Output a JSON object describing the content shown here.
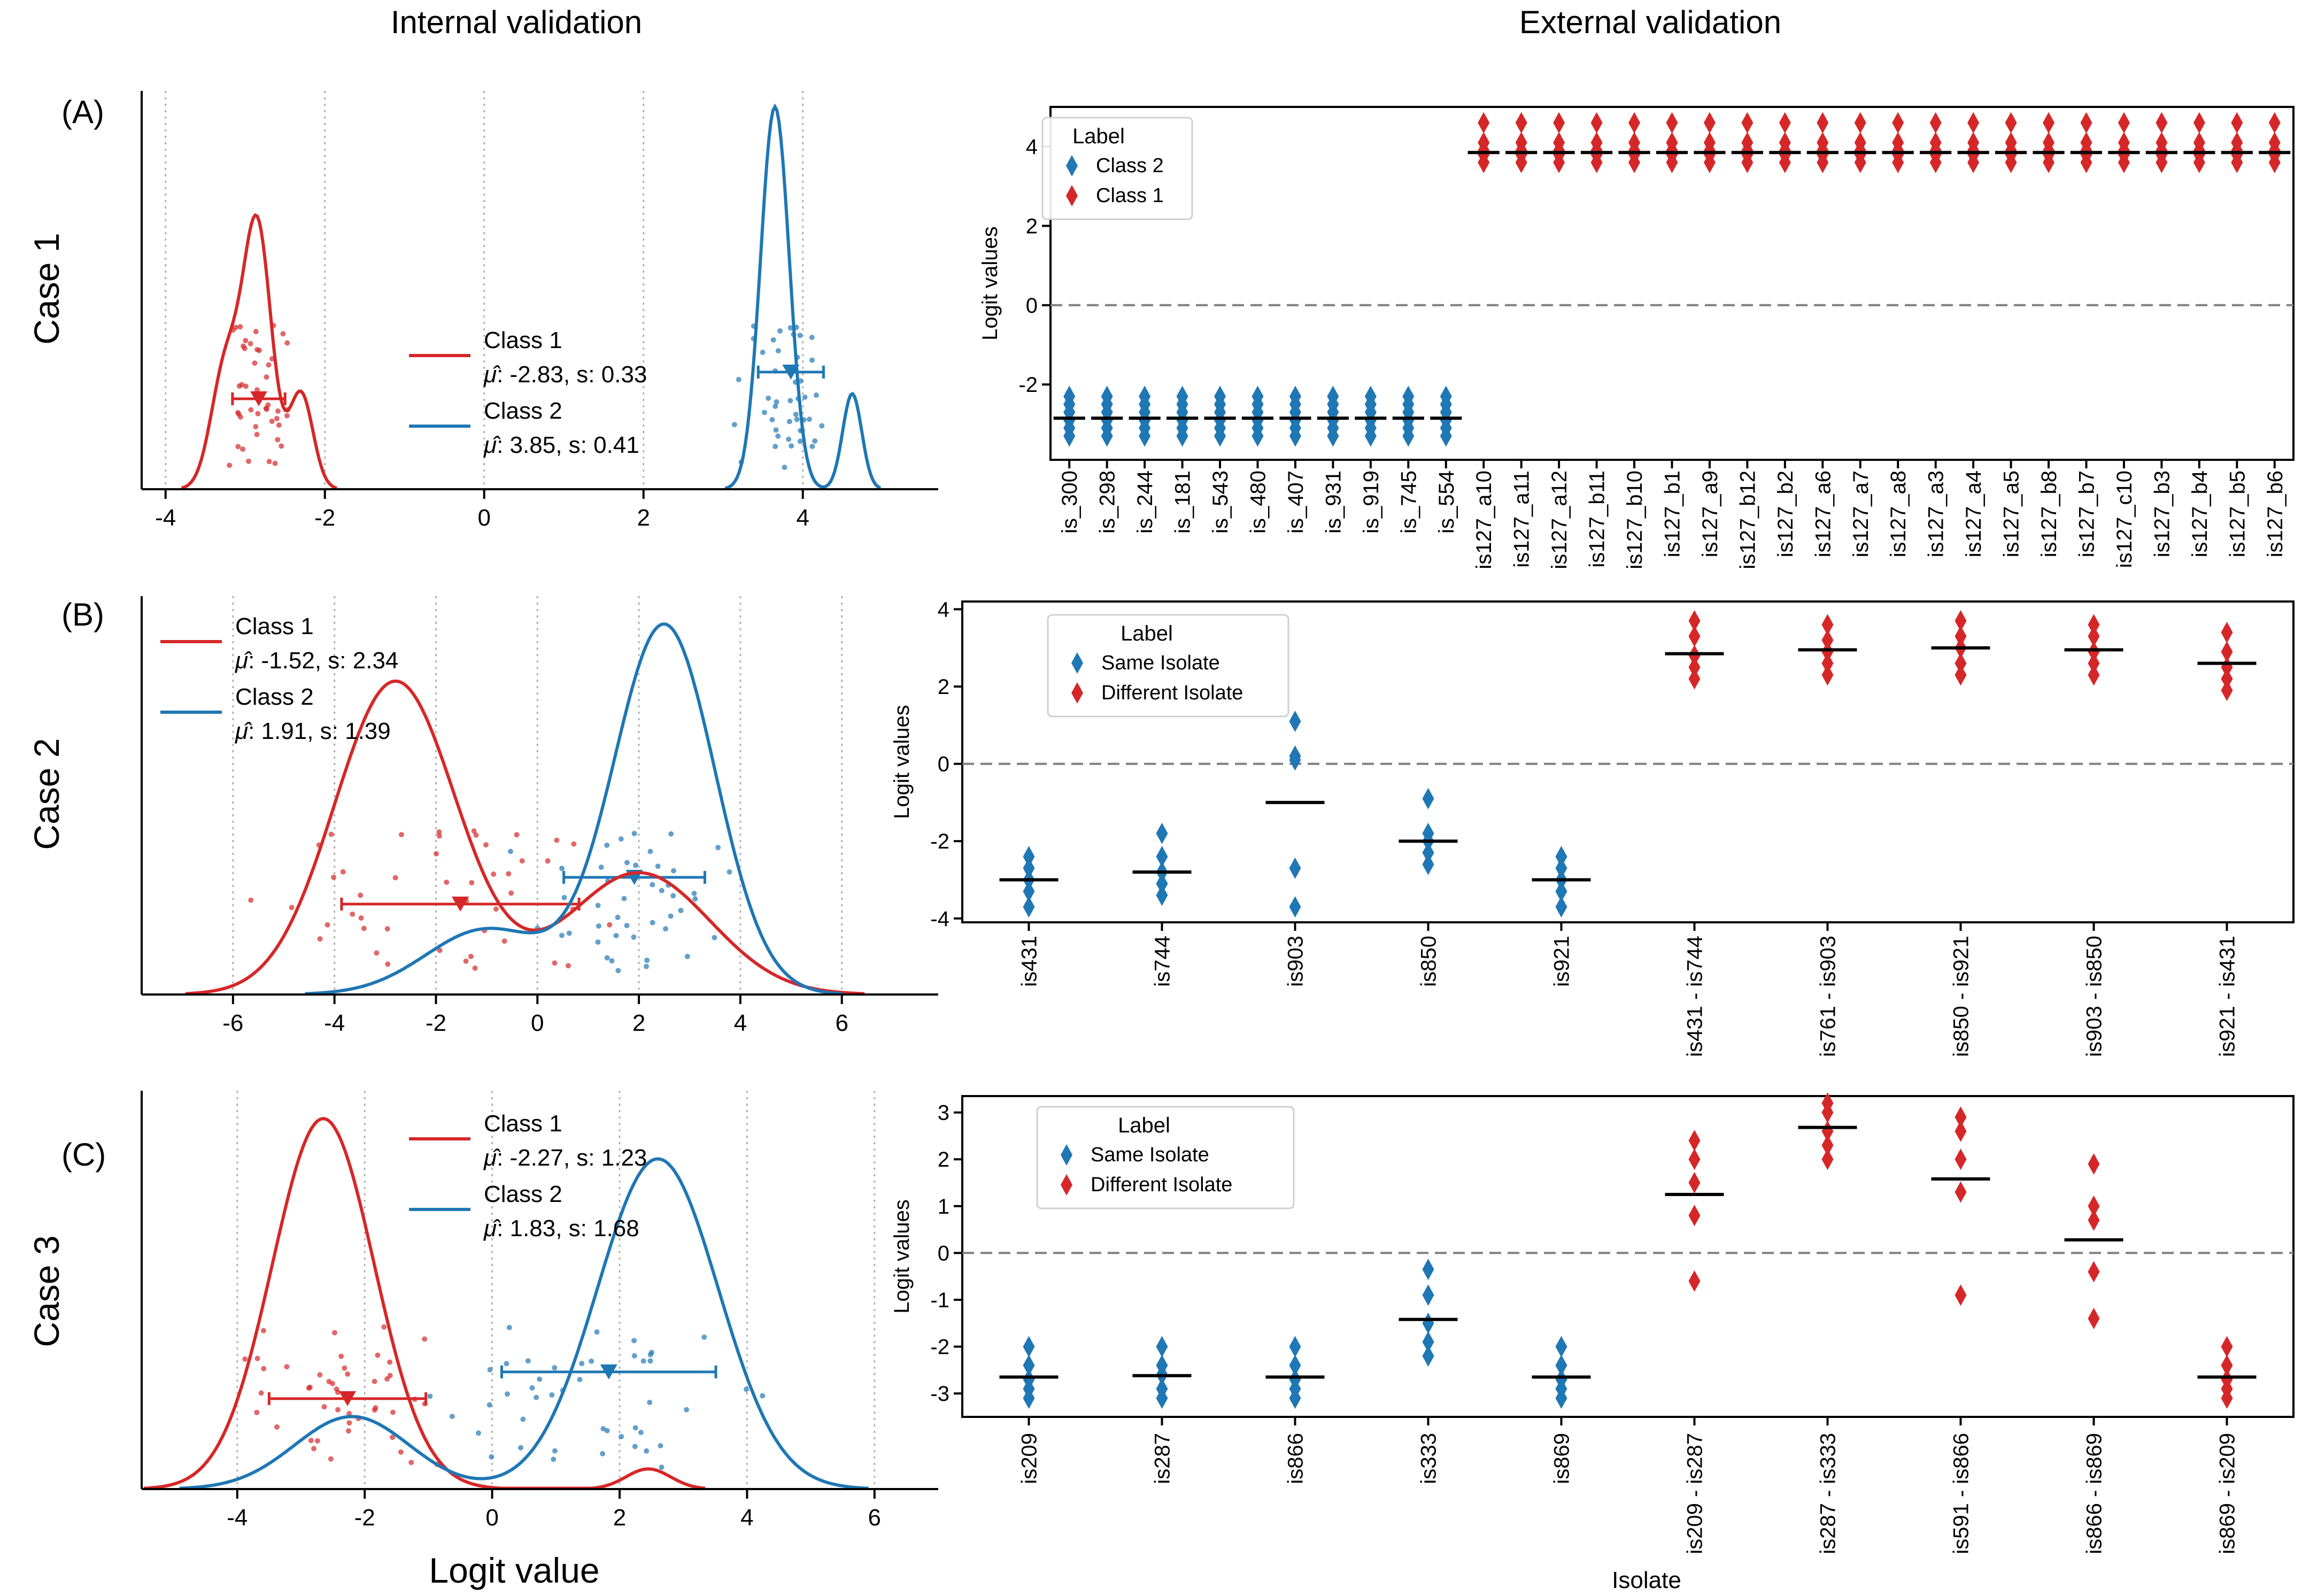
{
  "figure": {
    "internal_title": "Internal validation",
    "external_title": "External validation",
    "kde_xlabel": "Logit value",
    "colors": {
      "class1": "#d62728",
      "class2": "#1f77b4",
      "dashed": "#7f7f7f",
      "mean_bar": "#000000"
    }
  },
  "chart_data": [
    {
      "id": "A",
      "type": "line",
      "panel_label": "(A)",
      "case_label": "Case 1",
      "title": "Internal validation",
      "xlabel": "",
      "xlim": [
        -4.3,
        5.7
      ],
      "xticks": [
        -4,
        -2,
        0,
        2,
        4
      ],
      "grid": "vertical dotted",
      "legend_position": "center",
      "legend": [
        {
          "name": "Class 1",
          "stats": "-2.83, s: 0.33"
        },
        {
          "name": "Class 2",
          "stats": "3.85, s: 0.41"
        }
      ],
      "series": [
        {
          "name": "Class 1",
          "color": "#d62728",
          "mean": -2.83,
          "sd": 0.33,
          "components": [
            [
              -2.85,
              0.18,
              0.55
            ],
            [
              -3.25,
              0.18,
              0.25
            ],
            [
              -2.3,
              0.15,
              0.2
            ]
          ]
        },
        {
          "name": "Class 2",
          "color": "#1f77b4",
          "mean": 3.85,
          "sd": 0.41,
          "components": [
            [
              3.65,
              0.18,
              0.8
            ],
            [
              4.62,
              0.12,
              0.2
            ]
          ]
        }
      ]
    },
    {
      "id": "B",
      "type": "line",
      "panel_label": "(B)",
      "case_label": "Case 2",
      "xlabel": "",
      "xlim": [
        -7.8,
        7.9
      ],
      "xticks": [
        -6,
        -4,
        -2,
        0,
        2,
        4,
        6
      ],
      "grid": "vertical dotted",
      "legend_position": "upper-left",
      "legend": [
        {
          "name": "Class 1",
          "stats": "-1.52, s: 2.34"
        },
        {
          "name": "Class 2",
          "stats": "1.91, s: 1.39"
        }
      ],
      "series": [
        {
          "name": "Class 1",
          "color": "#d62728",
          "mean": -1.52,
          "sd": 2.34,
          "components": [
            [
              -2.8,
              1.2,
              0.72
            ],
            [
              2.0,
              1.4,
              0.28
            ]
          ]
        },
        {
          "name": "Class 2",
          "color": "#1f77b4",
          "mean": 1.91,
          "sd": 1.39,
          "components": [
            [
              2.5,
              1.0,
              0.85
            ],
            [
              -1.0,
              1.2,
              0.15
            ]
          ]
        }
      ]
    },
    {
      "id": "C",
      "type": "line",
      "panel_label": "(C)",
      "case_label": "Case 3",
      "xlabel": "Logit value",
      "xlim": [
        -5.5,
        7.0
      ],
      "xticks": [
        -4,
        -2,
        0,
        2,
        4,
        6
      ],
      "grid": "vertical dotted",
      "legend_position": "top-center",
      "legend": [
        {
          "name": "Class 1",
          "stats": "-2.27, s: 1.23"
        },
        {
          "name": "Class 2",
          "stats": "1.83, s: 1.68"
        }
      ],
      "series": [
        {
          "name": "Class 1",
          "color": "#d62728",
          "mean": -2.27,
          "sd": 1.23,
          "components": [
            [
              -2.65,
              0.8,
              0.92
            ],
            [
              2.45,
              0.35,
              0.05
            ]
          ]
        },
        {
          "name": "Class 2",
          "color": "#1f77b4",
          "mean": 1.83,
          "sd": 1.68,
          "components": [
            [
              2.6,
              0.95,
              0.82
            ],
            [
              -2.2,
              0.9,
              0.18
            ]
          ]
        }
      ]
    },
    {
      "id": "D",
      "type": "scatter",
      "title": "External validation",
      "xlabel": "",
      "ylabel": "Logit values",
      "ylim": [
        -3.9,
        5.0
      ],
      "yticks": [
        -2,
        0,
        2,
        4
      ],
      "legend_title": "Label",
      "legend_position": "upper-left",
      "legend": [
        "Class 2",
        "Class 1"
      ],
      "categories": [
        "is_300",
        "is_298",
        "is_244",
        "is_181",
        "is_543",
        "is_480",
        "is_407",
        "is_931",
        "is_919",
        "is_745",
        "is_554",
        "is127_a10",
        "is127_a11",
        "is127_a12",
        "is127_b11",
        "is127_b10",
        "is127_b1",
        "is127_a9",
        "is127_b12",
        "is127_b2",
        "is127_a6",
        "is127_a7",
        "is127_a8",
        "is127_a3",
        "is127_a4",
        "is127_a5",
        "is127_b8",
        "is127_b7",
        "is127_c10",
        "is127_b3",
        "is127_b4",
        "is127_b5",
        "is127_b6"
      ],
      "series": [
        {
          "name": "Class 2",
          "color": "#1f77b4",
          "indices": [
            0,
            1,
            2,
            3,
            4,
            5,
            6,
            7,
            8,
            9,
            10
          ],
          "points": [
            -2.3,
            -2.5,
            -2.7,
            -2.9,
            -3.1,
            -3.3
          ],
          "mean": -2.85
        },
        {
          "name": "Class 1",
          "color": "#d62728",
          "indices": [
            11,
            12,
            13,
            14,
            15,
            16,
            17,
            18,
            19,
            20,
            21,
            22,
            23,
            24,
            25,
            26,
            27,
            28,
            29,
            30,
            31,
            32
          ],
          "points": [
            4.6,
            4.1,
            3.9,
            3.8,
            3.6
          ],
          "mean": 3.85
        }
      ]
    },
    {
      "id": "E",
      "type": "scatter",
      "xlabel": "",
      "ylabel": "Logit values",
      "ylim": [
        -4.1,
        4.2
      ],
      "yticks": [
        -4,
        -2,
        0,
        2,
        4
      ],
      "legend_title": "Label",
      "legend_position": "upper-left",
      "legend": [
        "Same Isolate",
        "Different Isolate"
      ],
      "categories": [
        "is431",
        "is744",
        "is903",
        "is850",
        "is921",
        "is431 - is744",
        "is761 - is903",
        "is850 - is921",
        "is903 - is850",
        "is921 - is431"
      ],
      "groups": [
        {
          "label": "Same Isolate",
          "color": "#1f77b4",
          "mean": -3.0,
          "points": [
            -2.4,
            -2.7,
            -3.0,
            -3.3,
            -3.7
          ]
        },
        {
          "label": "Same Isolate",
          "color": "#1f77b4",
          "mean": -2.8,
          "points": [
            -1.8,
            -2.4,
            -2.8,
            -3.1,
            -3.4
          ]
        },
        {
          "label": "Same Isolate",
          "color": "#1f77b4",
          "mean": -1.0,
          "points": [
            1.1,
            0.2,
            0.1,
            -2.7,
            -3.7
          ]
        },
        {
          "label": "Same Isolate",
          "color": "#1f77b4",
          "mean": -2.0,
          "points": [
            -0.9,
            -1.8,
            -2.0,
            -2.3,
            -2.6
          ]
        },
        {
          "label": "Same Isolate",
          "color": "#1f77b4",
          "mean": -3.0,
          "points": [
            -2.4,
            -2.7,
            -3.0,
            -3.3,
            -3.7
          ]
        },
        {
          "label": "Different Isolate",
          "color": "#d62728",
          "mean": 2.85,
          "points": [
            3.7,
            3.3,
            2.8,
            2.5,
            2.2
          ]
        },
        {
          "label": "Different Isolate",
          "color": "#d62728",
          "mean": 2.95,
          "points": [
            3.6,
            3.2,
            2.9,
            2.6,
            2.3
          ]
        },
        {
          "label": "Different Isolate",
          "color": "#d62728",
          "mean": 3.0,
          "points": [
            3.7,
            3.3,
            3.0,
            2.6,
            2.3
          ]
        },
        {
          "label": "Different Isolate",
          "color": "#d62728",
          "mean": 2.95,
          "points": [
            3.6,
            3.3,
            2.9,
            2.6,
            2.3
          ]
        },
        {
          "label": "Different Isolate",
          "color": "#d62728",
          "mean": 2.6,
          "points": [
            3.4,
            2.9,
            2.5,
            2.2,
            1.9
          ]
        }
      ]
    },
    {
      "id": "F",
      "type": "scatter",
      "xlabel": "Isolate",
      "ylabel": "Logit values",
      "ylim": [
        -3.5,
        3.35
      ],
      "yticks": [
        -3,
        -2,
        -1,
        0,
        1,
        2,
        3
      ],
      "legend_title": "Label",
      "legend_position": "upper-left",
      "legend": [
        "Same Isolate",
        "Different Isolate"
      ],
      "categories": [
        "is209",
        "is287",
        "is866",
        "is333",
        "is869",
        "is209 - is287",
        "is287 - is333",
        "is591 - is866",
        "is866 - is869",
        "is869 - is209"
      ],
      "groups": [
        {
          "label": "Same Isolate",
          "color": "#1f77b4",
          "mean": -2.65,
          "points": [
            -2.0,
            -2.4,
            -2.7,
            -2.9,
            -3.1
          ]
        },
        {
          "label": "Same Isolate",
          "color": "#1f77b4",
          "mean": -2.62,
          "points": [
            -2.0,
            -2.4,
            -2.6,
            -2.9,
            -3.1
          ]
        },
        {
          "label": "Same Isolate",
          "color": "#1f77b4",
          "mean": -2.65,
          "points": [
            -2.0,
            -2.4,
            -2.7,
            -2.9,
            -3.1
          ]
        },
        {
          "label": "Same Isolate",
          "color": "#1f77b4",
          "mean": -1.42,
          "points": [
            -0.35,
            -0.9,
            -1.5,
            -1.9,
            -2.2
          ]
        },
        {
          "label": "Same Isolate",
          "color": "#1f77b4",
          "mean": -2.65,
          "points": [
            -2.0,
            -2.4,
            -2.7,
            -2.9,
            -3.1
          ]
        },
        {
          "label": "Different Isolate",
          "color": "#d62728",
          "mean": 1.25,
          "points": [
            2.4,
            2.0,
            1.5,
            0.8,
            -0.6
          ]
        },
        {
          "label": "Different Isolate",
          "color": "#d62728",
          "mean": 2.68,
          "points": [
            3.2,
            3.0,
            2.6,
            2.3,
            2.0
          ]
        },
        {
          "label": "Different Isolate",
          "color": "#d62728",
          "mean": 1.58,
          "points": [
            2.9,
            2.6,
            2.0,
            1.3,
            -0.9
          ]
        },
        {
          "label": "Different Isolate",
          "color": "#d62728",
          "mean": 0.28,
          "points": [
            1.9,
            1.0,
            0.7,
            -0.4,
            -1.4
          ]
        },
        {
          "label": "Different Isolate",
          "color": "#d62728",
          "mean": -2.65,
          "points": [
            -2.0,
            -2.4,
            -2.7,
            -2.9,
            -3.1
          ]
        }
      ]
    }
  ]
}
